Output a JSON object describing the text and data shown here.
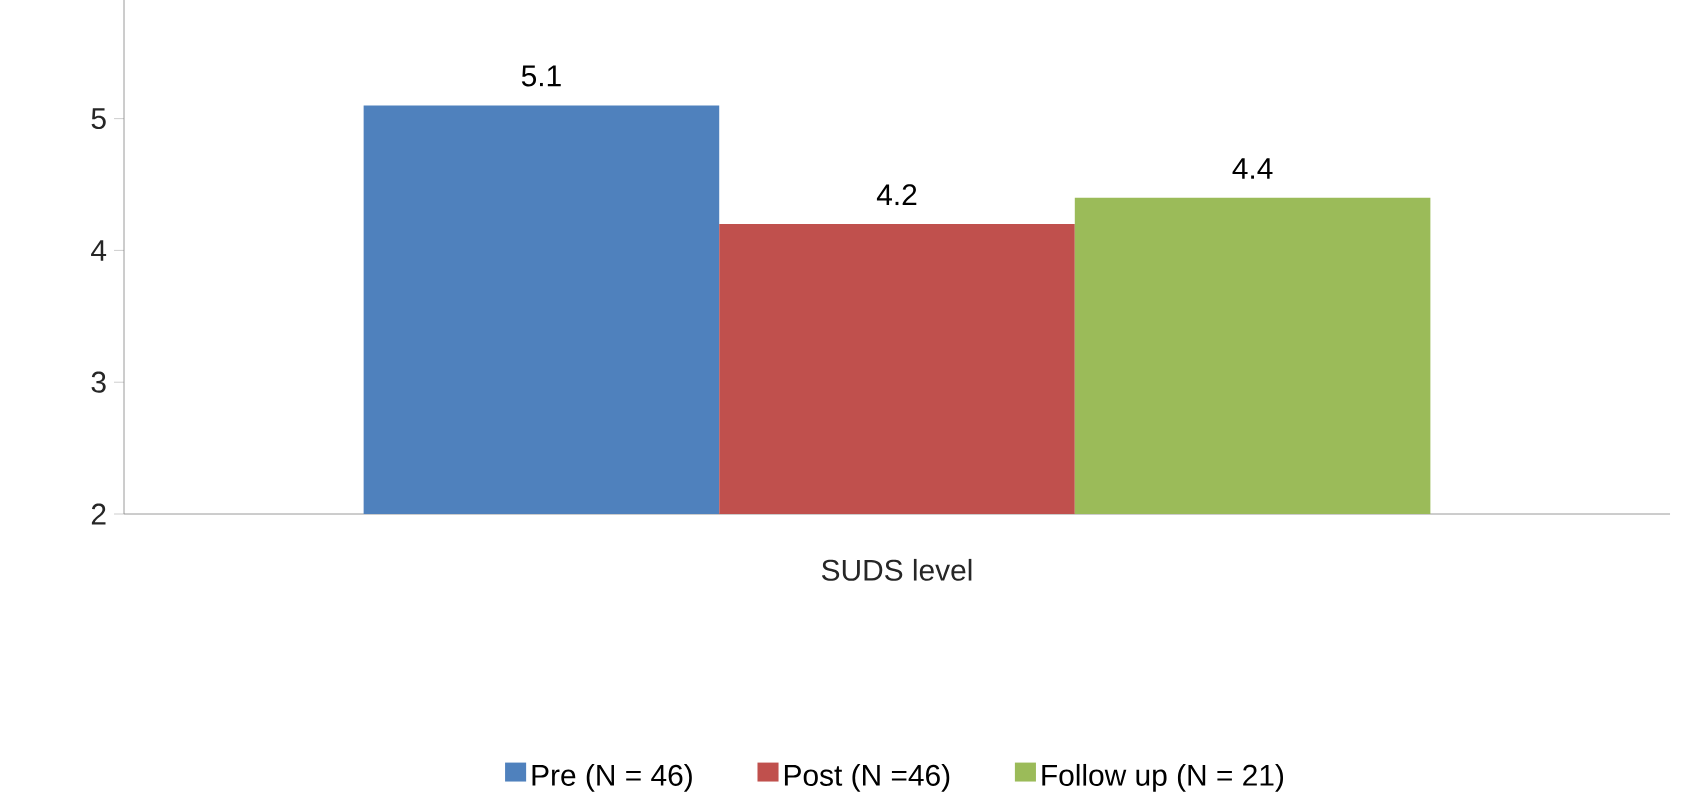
{
  "chart_data": {
    "type": "bar",
    "categories": [
      "SUDS level"
    ],
    "series": [
      {
        "name": "Pre (N = 46)",
        "color": "#4f81bd",
        "values": [
          5.1
        ]
      },
      {
        "name": "Post (N =46)",
        "color": "#c0504d",
        "values": [
          4.2
        ]
      },
      {
        "name": "Follow up (N =  21)",
        "color": "#9bbb59",
        "values": [
          4.4
        ]
      }
    ],
    "ylim": [
      2,
      5.9
    ],
    "yticks": [
      2,
      3,
      4,
      5
    ],
    "data_labels": true,
    "grid": false,
    "legend": "bottom"
  }
}
